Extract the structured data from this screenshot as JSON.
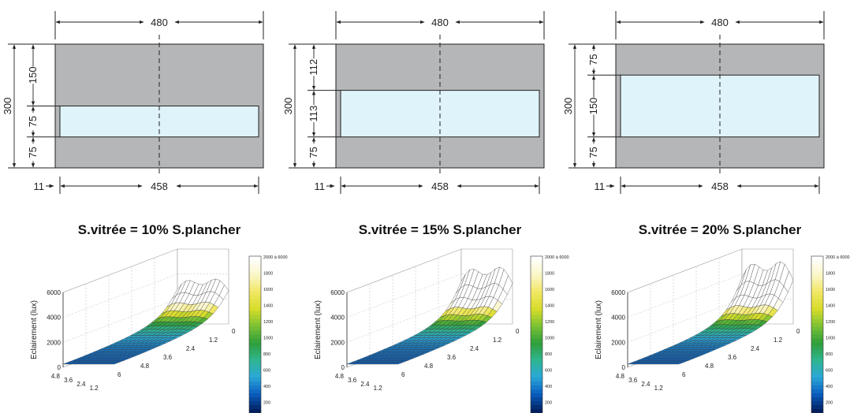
{
  "panels": [
    {
      "caption": "S.vitrée = 10% S.plancher",
      "width_label": "480",
      "window_width_label": "458",
      "offset_label": "11",
      "height_total_label": "300",
      "segment_labels": [
        "150",
        "75",
        "75"
      ],
      "segments_mm": [
        150,
        75,
        75
      ],
      "peak_lux": 3800
    },
    {
      "caption": "S.vitrée = 15% S.plancher",
      "width_label": "480",
      "window_width_label": "458",
      "offset_label": "11",
      "height_total_label": "300",
      "segment_labels": [
        "112",
        "113",
        "75"
      ],
      "segments_mm": [
        112,
        113,
        75
      ],
      "peak_lux": 4900
    },
    {
      "caption": "S.vitrée = 20% S.plancher",
      "width_label": "480",
      "window_width_label": "458",
      "offset_label": "11",
      "height_total_label": "300",
      "segment_labels": [
        "75",
        "150",
        "75"
      ],
      "segments_mm": [
        75,
        150,
        75
      ],
      "peak_lux": 5400
    }
  ],
  "surface_plot": {
    "z_axis_label": "Eclairement (lux)",
    "z_ticks": [
      "0",
      "2000",
      "4000",
      "6000"
    ],
    "y_ticks": [
      "4.8",
      "3.6",
      "2.4",
      "1.2"
    ],
    "x_ticks": [
      "6",
      "4.8",
      "3.6",
      "2.4",
      "1.2",
      "0"
    ],
    "colorbar_ticks": [
      "2000 à 6000",
      "1800",
      "1600",
      "1400",
      "1200",
      "1000",
      "800",
      "600",
      "400",
      "200"
    ],
    "colormap": [
      "#00205f",
      "#0a5dbf",
      "#2aa8d8",
      "#2fb58f",
      "#2f9e3a",
      "#7cc233",
      "#d7dc2a",
      "#f1e765",
      "#fbf6c8",
      "#ffffff"
    ]
  },
  "colors": {
    "wall": "#b5b6b8",
    "window": "#dff3fa",
    "outline": "#222222"
  }
}
